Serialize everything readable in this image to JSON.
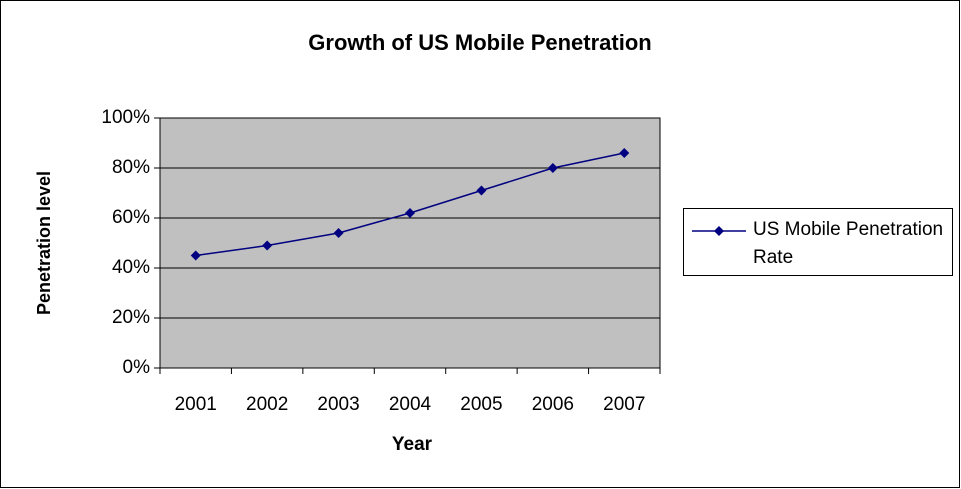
{
  "chart_data": {
    "type": "line",
    "title": "Growth of US Mobile Penetration",
    "x_label": "Year",
    "y_label": "Penetration level",
    "categories": [
      "2001",
      "2002",
      "2003",
      "2004",
      "2005",
      "2006",
      "2007"
    ],
    "series": [
      {
        "name": "US Mobile Penetration Rate",
        "color": "#000080",
        "values": [
          45,
          49,
          54,
          62,
          71,
          80,
          86
        ]
      }
    ],
    "ylim": [
      0,
      100
    ],
    "yticks": [
      {
        "value": 0,
        "label": "0%"
      },
      {
        "value": 20,
        "label": "20%"
      },
      {
        "value": 40,
        "label": "40%"
      },
      {
        "value": 60,
        "label": "60%"
      },
      {
        "value": 80,
        "label": "80%"
      },
      {
        "value": 100,
        "label": "100%"
      }
    ],
    "grid": true,
    "legend": "right"
  }
}
